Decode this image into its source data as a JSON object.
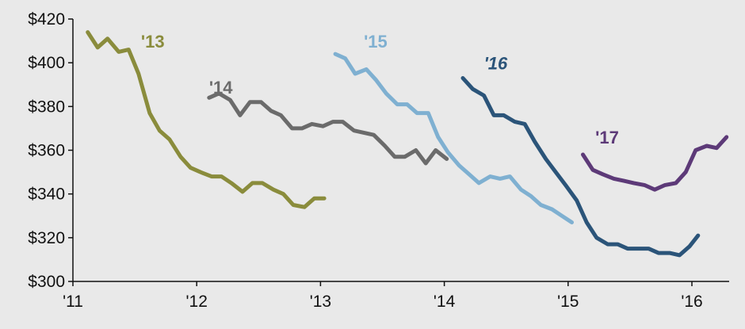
{
  "chart_data": {
    "type": "line",
    "title": "",
    "xlabel": "",
    "ylabel": "",
    "ylim": [
      300,
      420
    ],
    "xlim": [
      2011,
      2016.3
    ],
    "grid": false,
    "yticks": [
      300,
      320,
      340,
      360,
      380,
      400,
      420
    ],
    "ytick_labels": [
      "$300",
      "$320",
      "$340",
      "$360",
      "$380",
      "$400",
      "$420"
    ],
    "xticks": [
      2011,
      2012,
      2013,
      2014,
      2015,
      2016
    ],
    "xtick_labels": [
      "'11",
      "'12",
      "'13",
      "'14",
      "'15",
      "'16"
    ],
    "series": [
      {
        "name": "'13",
        "color": "#8a8c3c",
        "italic": false,
        "label_anchor": [
          2011.55,
          407
        ],
        "x": [
          2011.12,
          2011.2,
          2011.28,
          2011.37,
          2011.45,
          2011.53,
          2011.62,
          2011.7,
          2011.78,
          2011.87,
          2011.95,
          2012.03,
          2012.12,
          2012.2,
          2012.28,
          2012.37,
          2012.45,
          2012.53,
          2012.62,
          2012.7,
          2012.78,
          2012.87,
          2012.95,
          2013.03
        ],
        "values": [
          414,
          407,
          411,
          405,
          406,
          395,
          377,
          369,
          365,
          357,
          352,
          350,
          348,
          348,
          345,
          341,
          345,
          345,
          342,
          340,
          335,
          334,
          338,
          338
        ]
      },
      {
        "name": "'14",
        "color": "#6b6b6b",
        "italic": false,
        "label_anchor": [
          2012.1,
          386
        ],
        "x": [
          2012.1,
          2012.18,
          2012.27,
          2012.35,
          2012.43,
          2012.52,
          2012.6,
          2012.68,
          2012.77,
          2012.85,
          2012.93,
          2013.02,
          2013.1,
          2013.18,
          2013.27,
          2013.35,
          2013.43,
          2013.52,
          2013.6,
          2013.68,
          2013.77,
          2013.85,
          2013.93,
          2014.02
        ],
        "values": [
          384,
          386,
          383,
          376,
          382,
          382,
          378,
          376,
          370,
          370,
          372,
          371,
          373,
          373,
          369,
          368,
          367,
          362,
          357,
          357,
          360,
          354,
          360,
          356
        ]
      },
      {
        "name": "'15",
        "color": "#7fb0d1",
        "italic": false,
        "label_anchor": [
          2013.35,
          407
        ],
        "x": [
          2013.12,
          2013.2,
          2013.28,
          2013.37,
          2013.45,
          2013.53,
          2013.62,
          2013.7,
          2013.78,
          2013.87,
          2013.95,
          2014.03,
          2014.12,
          2014.2,
          2014.28,
          2014.37,
          2014.45,
          2014.53,
          2014.62,
          2014.7,
          2014.78,
          2014.87,
          2014.95,
          2015.03
        ],
        "values": [
          404,
          402,
          395,
          397,
          392,
          386,
          381,
          381,
          377,
          377,
          366,
          359,
          353,
          349,
          345,
          348,
          347,
          348,
          342,
          339,
          335,
          333,
          330,
          327
        ]
      },
      {
        "name": "'16",
        "color": "#2b5479",
        "italic": true,
        "label_anchor": [
          2014.32,
          397
        ],
        "x": [
          2014.15,
          2014.23,
          2014.32,
          2014.4,
          2014.48,
          2014.57,
          2014.65,
          2014.73,
          2014.82,
          2014.9,
          2014.98,
          2015.07,
          2015.15,
          2015.23,
          2015.32,
          2015.4,
          2015.48,
          2015.57,
          2015.65,
          2015.73,
          2015.82,
          2015.9,
          2015.98,
          2016.05
        ],
        "values": [
          393,
          388,
          385,
          376,
          376,
          373,
          372,
          364,
          356,
          350,
          344,
          337,
          327,
          320,
          317,
          317,
          315,
          315,
          315,
          313,
          313,
          312,
          316,
          321
        ]
      },
      {
        "name": "'17",
        "color": "#5d3a78",
        "italic": false,
        "label_anchor": [
          2015.22,
          363
        ],
        "x": [
          2015.12,
          2015.2,
          2015.28,
          2015.37,
          2015.45,
          2015.53,
          2015.62,
          2015.7,
          2015.78,
          2015.87,
          2015.95,
          2016.03,
          2016.12,
          2016.2,
          2016.28
        ],
        "values": [
          358,
          351,
          349,
          347,
          346,
          345,
          344,
          342,
          344,
          345,
          350,
          360,
          362,
          361,
          366
        ]
      }
    ]
  }
}
